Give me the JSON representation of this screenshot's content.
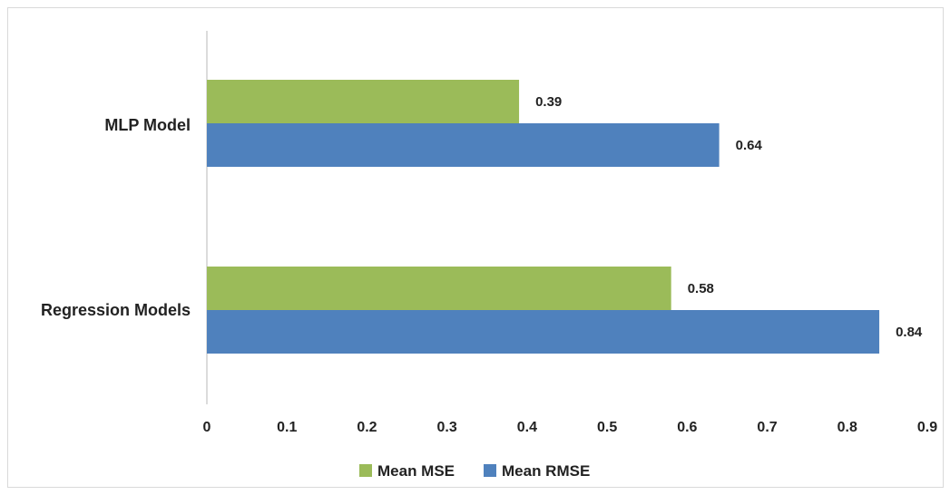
{
  "chart_data": {
    "type": "bar",
    "orientation": "horizontal",
    "categories": [
      "MLP Model",
      "Regression Models"
    ],
    "series": [
      {
        "name": "Mean MSE",
        "color": "#9bbb59",
        "values": [
          0.39,
          0.58
        ]
      },
      {
        "name": "Mean RMSE",
        "color": "#4f81bd",
        "values": [
          0.64,
          0.84
        ]
      }
    ],
    "xlim": [
      0,
      0.9
    ],
    "xticks": [
      "0",
      "0.1",
      "0.2",
      "0.3",
      "0.4",
      "0.5",
      "0.6",
      "0.7",
      "0.8",
      "0.9"
    ],
    "data_labels": {
      "MLP Model": [
        "0.39",
        "0.64"
      ],
      "Regression Models": [
        "0.58",
        "0.84"
      ]
    },
    "title": "",
    "xlabel": "",
    "ylabel": "",
    "grid": false,
    "legend": "bottom"
  }
}
